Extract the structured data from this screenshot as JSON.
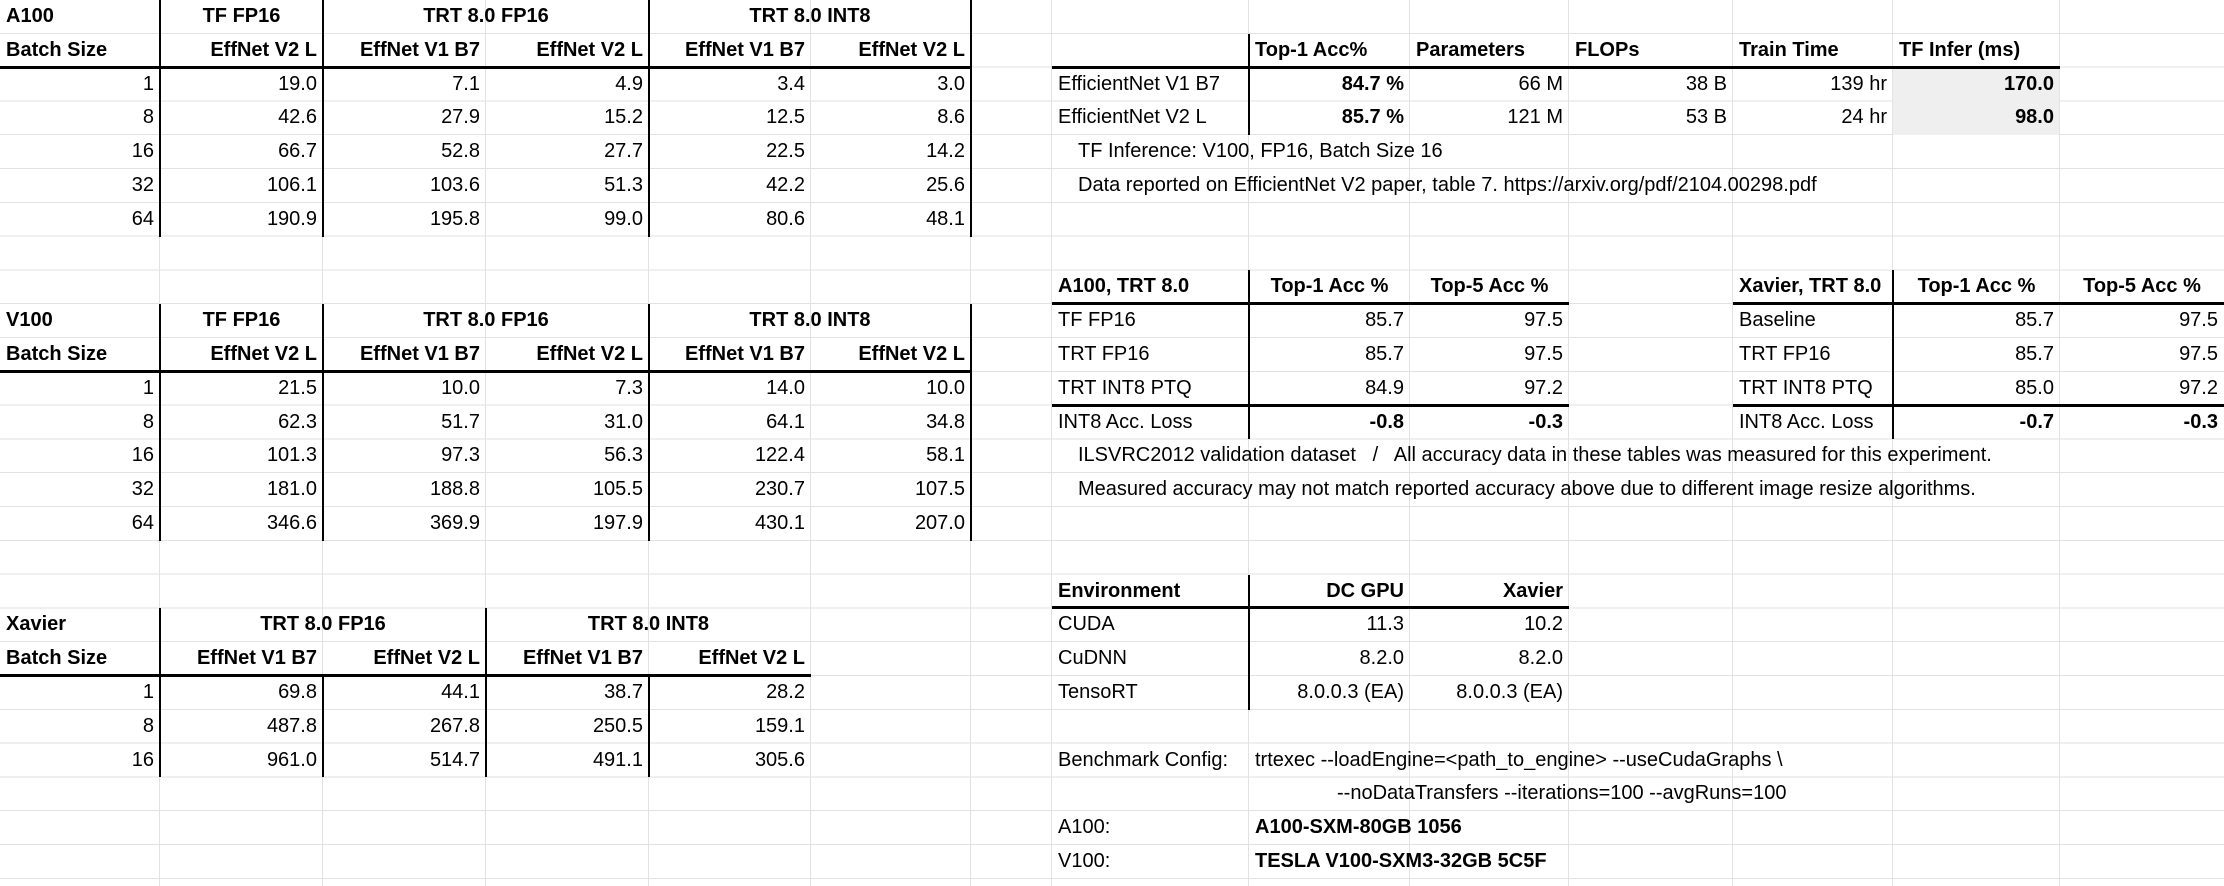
{
  "colors": {
    "background": "#ffffff",
    "gridline": "#e2e2e2",
    "black_border": "#000000",
    "gray_cell_bg": "#efefef",
    "text": "#000000"
  },
  "perf_tables": [
    {
      "device": "A100",
      "batch_label": "Batch Size",
      "group_headers": [
        "TF FP16",
        "TRT 8.0 FP16",
        "TRT 8.0 INT8"
      ],
      "col_headers": [
        "EffNet V2 L",
        "EffNet V1 B7",
        "EffNet V2 L",
        "EffNet V1 B7",
        "EffNet V2 L"
      ],
      "batches": [
        "1",
        "8",
        "16",
        "32",
        "64"
      ],
      "values": [
        [
          "19.0",
          "7.1",
          "4.9",
          "3.4",
          "3.0"
        ],
        [
          "42.6",
          "27.9",
          "15.2",
          "12.5",
          "8.6"
        ],
        [
          "66.7",
          "52.8",
          "27.7",
          "22.5",
          "14.2"
        ],
        [
          "106.1",
          "103.6",
          "51.3",
          "42.2",
          "25.6"
        ],
        [
          "190.9",
          "195.8",
          "99.0",
          "80.6",
          "48.1"
        ]
      ]
    },
    {
      "device": "V100",
      "batch_label": "Batch Size",
      "group_headers": [
        "TF FP16",
        "TRT 8.0 FP16",
        "TRT 8.0 INT8"
      ],
      "col_headers": [
        "EffNet V2 L",
        "EffNet V1 B7",
        "EffNet V2 L",
        "EffNet V1 B7",
        "EffNet V2 L"
      ],
      "batches": [
        "1",
        "8",
        "16",
        "32",
        "64"
      ],
      "values": [
        [
          "21.5",
          "10.0",
          "7.3",
          "14.0",
          "10.0"
        ],
        [
          "62.3",
          "51.7",
          "31.0",
          "64.1",
          "34.8"
        ],
        [
          "101.3",
          "97.3",
          "56.3",
          "122.4",
          "58.1"
        ],
        [
          "181.0",
          "188.8",
          "105.5",
          "230.7",
          "107.5"
        ],
        [
          "346.6",
          "369.9",
          "197.9",
          "430.1",
          "207.0"
        ]
      ]
    },
    {
      "device": "Xavier",
      "batch_label": "Batch Size",
      "group_headers": [
        "TRT 8.0 FP16",
        "TRT 8.0 INT8"
      ],
      "col_headers": [
        "EffNet V1 B7",
        "EffNet V2 L",
        "EffNet V1 B7",
        "EffNet V2 L"
      ],
      "batches": [
        "1",
        "8",
        "16"
      ],
      "values": [
        [
          "69.8",
          "44.1",
          "38.7",
          "28.2"
        ],
        [
          "487.8",
          "267.8",
          "250.5",
          "159.1"
        ],
        [
          "961.0",
          "514.7",
          "491.1",
          "305.6"
        ]
      ]
    }
  ],
  "model_info": {
    "headers": [
      "Top-1 Acc%",
      "Parameters",
      "FLOPs",
      "Train Time",
      "TF Infer (ms)"
    ],
    "rows": [
      {
        "model": "EfficientNet V1 B7",
        "top1": "84.7 %",
        "params": "66 M",
        "flops": "38 B",
        "train_time": "139 hr",
        "tf_infer": "170.0"
      },
      {
        "model": "EfficientNet V2 L",
        "top1": "85.7 %",
        "params": "121 M",
        "flops": "53 B",
        "train_time": "24 hr",
        "tf_infer": "98.0"
      }
    ],
    "notes": [
      "TF Inference: V100, FP16, Batch Size 16",
      "Data reported on EfficientNet V2 paper, table 7. https://arxiv.org/pdf/2104.00298.pdf"
    ]
  },
  "accuracy_tables": [
    {
      "title": "A100, TRT 8.0",
      "headers": [
        "Top-1 Acc %",
        "Top-5 Acc %"
      ],
      "rows": [
        [
          "TF FP16",
          "85.7",
          "97.5"
        ],
        [
          "TRT FP16",
          "85.7",
          "97.5"
        ],
        [
          "TRT INT8 PTQ",
          "84.9",
          "97.2"
        ]
      ],
      "loss_row": [
        "INT8 Acc. Loss",
        "-0.8",
        "-0.3"
      ]
    },
    {
      "title": "Xavier, TRT 8.0",
      "headers": [
        "Top-1 Acc %",
        "Top-5 Acc %"
      ],
      "rows": [
        [
          "Baseline",
          "85.7",
          "97.5"
        ],
        [
          "TRT FP16",
          "85.7",
          "97.5"
        ],
        [
          "TRT INT8 PTQ",
          "85.0",
          "97.2"
        ]
      ],
      "loss_row": [
        "INT8 Acc. Loss",
        "-0.7",
        "-0.3"
      ]
    }
  ],
  "accuracy_notes": [
    "ILSVRC2012 validation dataset   /   All accuracy data in these tables was measured for this experiment.",
    "Measured accuracy may not match reported accuracy above due to different image resize algorithms."
  ],
  "environment": {
    "title": "Environment",
    "headers": [
      "DC GPU",
      "Xavier"
    ],
    "rows": [
      [
        "CUDA",
        "11.3",
        "10.2"
      ],
      [
        "CuDNN",
        "8.2.0",
        "8.2.0"
      ],
      [
        "TensoRT",
        "8.0.0.3 (EA)",
        "8.0.0.3 (EA)"
      ]
    ]
  },
  "footer": {
    "benchmark_config_label": "Benchmark Config:",
    "benchmark_config_line1": "trtexec --loadEngine=<path_to_engine> --useCudaGraphs \\",
    "benchmark_config_line2": "--noDataTransfers --iterations=100 --avgRuns=100",
    "gpu_ids": [
      {
        "label": "A100:",
        "value": "A100-SXM-80GB 1056"
      },
      {
        "label": "V100:",
        "value": "TESLA V100-SXM3-32GB 5C5F"
      }
    ]
  }
}
